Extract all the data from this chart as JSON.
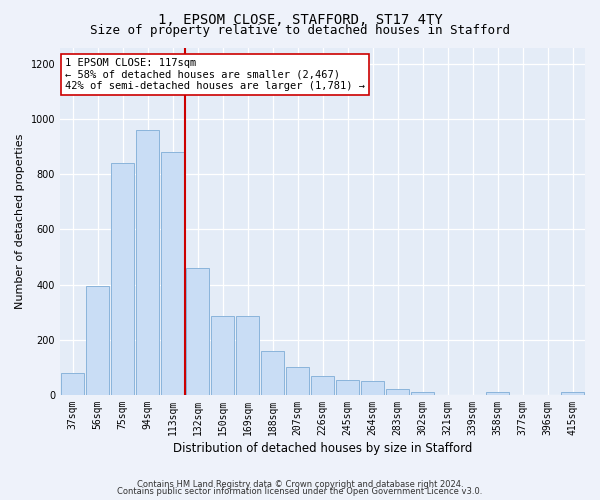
{
  "title": "1, EPSOM CLOSE, STAFFORD, ST17 4TY",
  "subtitle": "Size of property relative to detached houses in Stafford",
  "xlabel": "Distribution of detached houses by size in Stafford",
  "ylabel": "Number of detached properties",
  "bar_labels": [
    "37sqm",
    "56sqm",
    "75sqm",
    "94sqm",
    "113sqm",
    "132sqm",
    "150sqm",
    "169sqm",
    "188sqm",
    "207sqm",
    "226sqm",
    "245sqm",
    "264sqm",
    "283sqm",
    "302sqm",
    "321sqm",
    "339sqm",
    "358sqm",
    "377sqm",
    "396sqm",
    "415sqm"
  ],
  "bar_values": [
    80,
    395,
    840,
    960,
    880,
    460,
    285,
    285,
    160,
    100,
    70,
    55,
    50,
    20,
    12,
    0,
    0,
    12,
    0,
    0,
    12
  ],
  "bar_color": "#c9ddf5",
  "bar_edge_color": "#8ab4db",
  "vline_x_index": 4,
  "vline_color": "#cc0000",
  "annotation_text": "1 EPSOM CLOSE: 117sqm\n← 58% of detached houses are smaller (2,467)\n42% of semi-detached houses are larger (1,781) →",
  "annotation_box_color": "#ffffff",
  "annotation_box_edge": "#cc0000",
  "ylim": [
    0,
    1260
  ],
  "yticks": [
    0,
    200,
    400,
    600,
    800,
    1000,
    1200
  ],
  "footer1": "Contains HM Land Registry data © Crown copyright and database right 2024.",
  "footer2": "Contains public sector information licensed under the Open Government Licence v3.0.",
  "bg_color": "#eef2fa",
  "plot_bg_color": "#e4ecf7",
  "grid_color": "#ffffff",
  "title_fontsize": 10,
  "subtitle_fontsize": 9,
  "tick_fontsize": 7,
  "ylabel_fontsize": 8,
  "xlabel_fontsize": 8.5,
  "annotation_fontsize": 7.5,
  "footer_fontsize": 6
}
